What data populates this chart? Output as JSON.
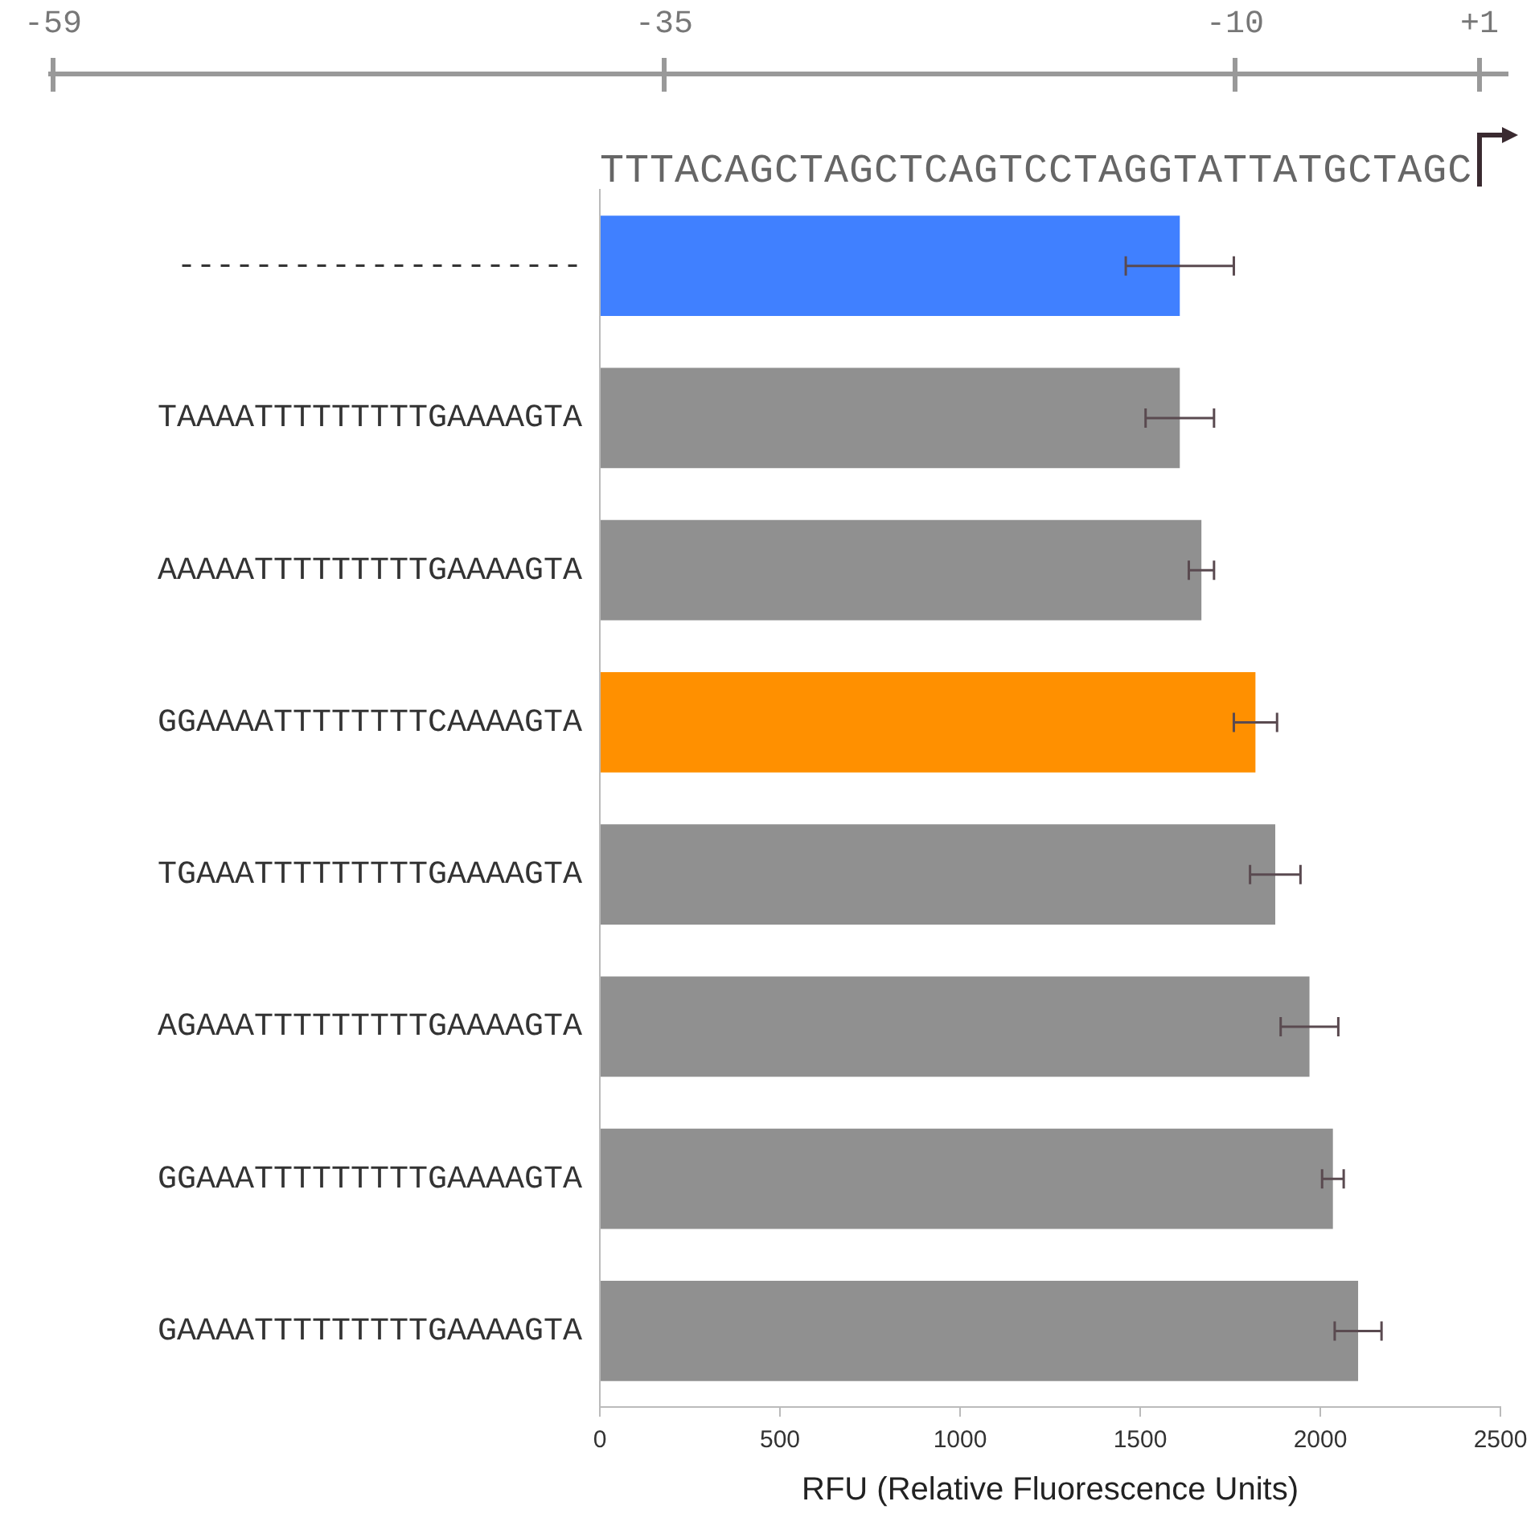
{
  "chart_data": {
    "type": "bar",
    "orientation": "horizontal",
    "xlabel": "RFU (Relative Fluorescence Units)",
    "categories": [
      "---------------------",
      "TAAAATTTTTTTTTGAAAAGTA",
      "AAAAATTTTTTTTTGAAAAGTA",
      "GGAAAATTTTTTTTCAAAAGTA",
      "TGAAATTTTTTTTTGAAAAGTA",
      "AGAAATTTTTTTTTGAAAAGTA",
      "GGAAATTTTTTTTTGAAAAGTA",
      "GAAAATTTTTTTTTGAAAAGTA"
    ],
    "values": [
      1610,
      1610,
      1670,
      1820,
      1875,
      1970,
      2035,
      2105
    ],
    "colors": [
      "#4080ff",
      "#909090",
      "#909090",
      "#ff9000",
      "#909090",
      "#909090",
      "#909090",
      "#909090"
    ],
    "errors": [
      150,
      95,
      35,
      60,
      70,
      80,
      30,
      65
    ],
    "xlim": [
      0,
      2500
    ],
    "xticks": [
      0,
      500,
      1000,
      1500,
      2000,
      2500
    ],
    "grid": false,
    "legend": false,
    "annotations": [
      "-59",
      "-35",
      "-10",
      "+1",
      "TTTACAGCTAGCTCAGTCCTAGGTATTATGCTAGC"
    ]
  }
}
